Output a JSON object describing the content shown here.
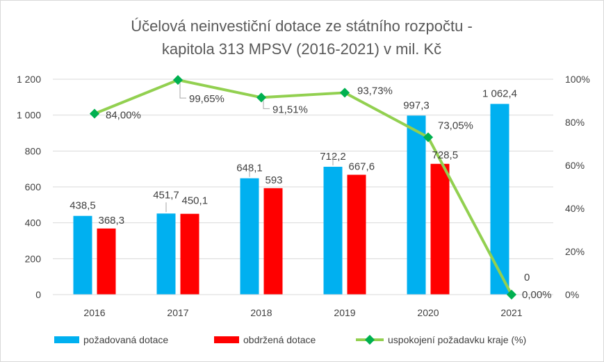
{
  "chart_data": {
    "type": "bar",
    "title_lines": [
      "Účelová neinvestiční dotace ze státního rozpočtu -",
      "kapitola 313 MPSV (2016-2021) v mil. Kč"
    ],
    "categories": [
      "2016",
      "2017",
      "2018",
      "2019",
      "2020",
      "2021"
    ],
    "y_left": {
      "min": 0,
      "max": 1200,
      "ticks": [
        0,
        200,
        400,
        600,
        800,
        1000,
        1200
      ],
      "tick_labels": [
        "0",
        "200",
        "400",
        "600",
        "800",
        "1 000",
        "1 200"
      ]
    },
    "y_right": {
      "min": 0,
      "max": 1,
      "ticks": [
        0,
        0.2,
        0.4,
        0.6,
        0.8,
        1.0
      ],
      "tick_labels": [
        "0%",
        "20%",
        "40%",
        "60%",
        "80%",
        "100%"
      ]
    },
    "series": [
      {
        "name": "požadovaná dotace",
        "kind": "bar",
        "color": "#00b0f0",
        "values": [
          438.5,
          451.7,
          648.1,
          712.2,
          997.3,
          1062.4
        ],
        "labels": [
          "438,5",
          "451,7",
          "648,1",
          "712,2",
          "997,3",
          "1 062,4"
        ]
      },
      {
        "name": "obdržená dotace",
        "kind": "bar",
        "color": "#ff0000",
        "values": [
          368.3,
          450.1,
          593,
          667.6,
          728.5,
          0
        ],
        "labels": [
          "368,3",
          "450,1",
          "593",
          "667,6",
          "728,5",
          "0"
        ]
      },
      {
        "name": "uspokojení požadavku kraje (%)",
        "kind": "line",
        "axis": "right",
        "color": "#92d050",
        "marker_color": "#00b050",
        "values": [
          0.84,
          0.9965,
          0.9151,
          0.9373,
          0.7305,
          0.0
        ],
        "labels": [
          "84,00%",
          "99,65%",
          "91,51%",
          "93,73%",
          "73,05%",
          "0,00%"
        ]
      }
    ],
    "grid": true,
    "legend_position": "bottom"
  }
}
